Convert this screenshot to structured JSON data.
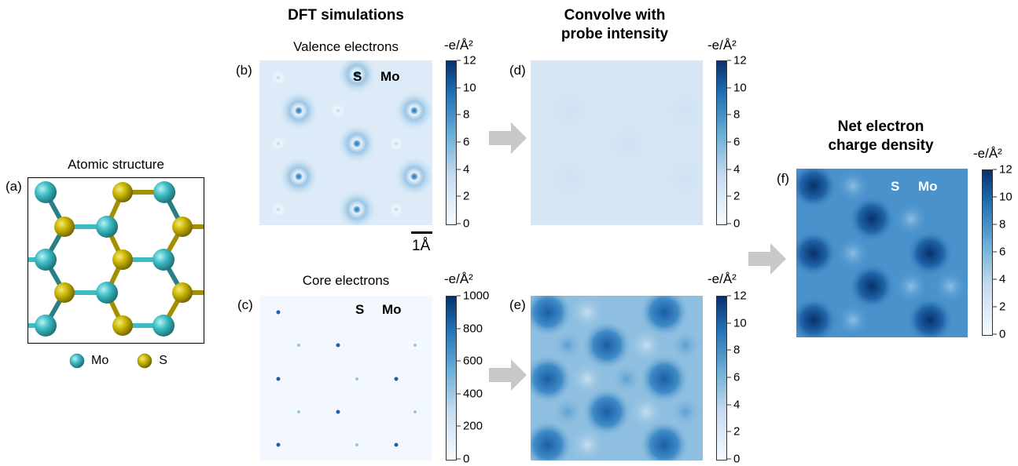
{
  "panels": {
    "a": {
      "label": "(a)",
      "title": "Atomic structure",
      "legend": [
        "Mo",
        "S"
      ]
    },
    "b": {
      "label": "(b)",
      "subtitle": "Valence electrons",
      "atom_labels": [
        "S",
        "Mo"
      ],
      "scale_bar": "1Å"
    },
    "c": {
      "label": "(c)",
      "subtitle": "Core electrons",
      "atom_labels": [
        "S",
        "Mo"
      ]
    },
    "d": {
      "label": "(d)"
    },
    "e": {
      "label": "(e)"
    },
    "f": {
      "label": "(f)",
      "atom_labels": [
        "S",
        "Mo"
      ]
    }
  },
  "headings": {
    "dft": "DFT simulations",
    "convolve_l1": "Convolve with",
    "convolve_l2": "probe intensity",
    "net_l1": "Net electron",
    "net_l2": "charge density"
  },
  "colorbars": {
    "unit": "-e/Å²",
    "ticks_12": [
      "12",
      "10",
      "8",
      "6",
      "4",
      "2",
      "0"
    ],
    "ticks_1000": [
      "1000",
      "800",
      "600",
      "400",
      "200",
      "0"
    ]
  },
  "colors": {
    "mo": "#3cbcc4",
    "s": "#c8b400",
    "arrow": "#c8c8c8",
    "cmap_low": "#f7fbff",
    "cmap_high": "#08306b"
  }
}
